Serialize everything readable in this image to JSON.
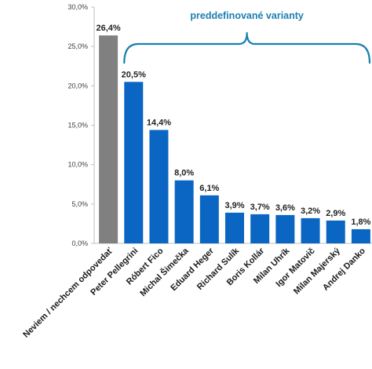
{
  "chart_data": {
    "type": "bar",
    "categories": [
      "Neviem / nechcem odpovedať",
      "Peter Pellegrini",
      "Róbert Fico",
      "Michal Šimečka",
      "Eduard Heger",
      "Richard Sulík",
      "Boris Kollár",
      "Milan Uhrík",
      "Igor Matovič",
      "Milan Majerský",
      "Andrej Danko"
    ],
    "values": [
      26.4,
      20.5,
      14.4,
      8.0,
      6.1,
      3.9,
      3.7,
      3.6,
      3.2,
      2.9,
      1.8
    ],
    "value_labels": [
      "26,4%",
      "20,5%",
      "14,4%",
      "8,0%",
      "6,1%",
      "3,9%",
      "3,7%",
      "3,6%",
      "3,2%",
      "2,9%",
      "1,8%"
    ],
    "bar_colors": [
      "#808080",
      "#0a66c2",
      "#0a66c2",
      "#0a66c2",
      "#0a66c2",
      "#0a66c2",
      "#0a66c2",
      "#0a66c2",
      "#0a66c2",
      "#0a66c2",
      "#0a66c2"
    ],
    "y_ticks": [
      0,
      5,
      10,
      15,
      20,
      25,
      30
    ],
    "y_tick_labels": [
      "0,0%",
      "5,0%",
      "10,0%",
      "15,0%",
      "20,0%",
      "25,0%",
      "30,0%"
    ],
    "ylim": [
      0,
      30
    ],
    "grid": false,
    "annotation": {
      "text": "preddefinované varianty",
      "color": "#1a7fb3",
      "brace_from_category": 1,
      "brace_to_category": 10
    }
  }
}
